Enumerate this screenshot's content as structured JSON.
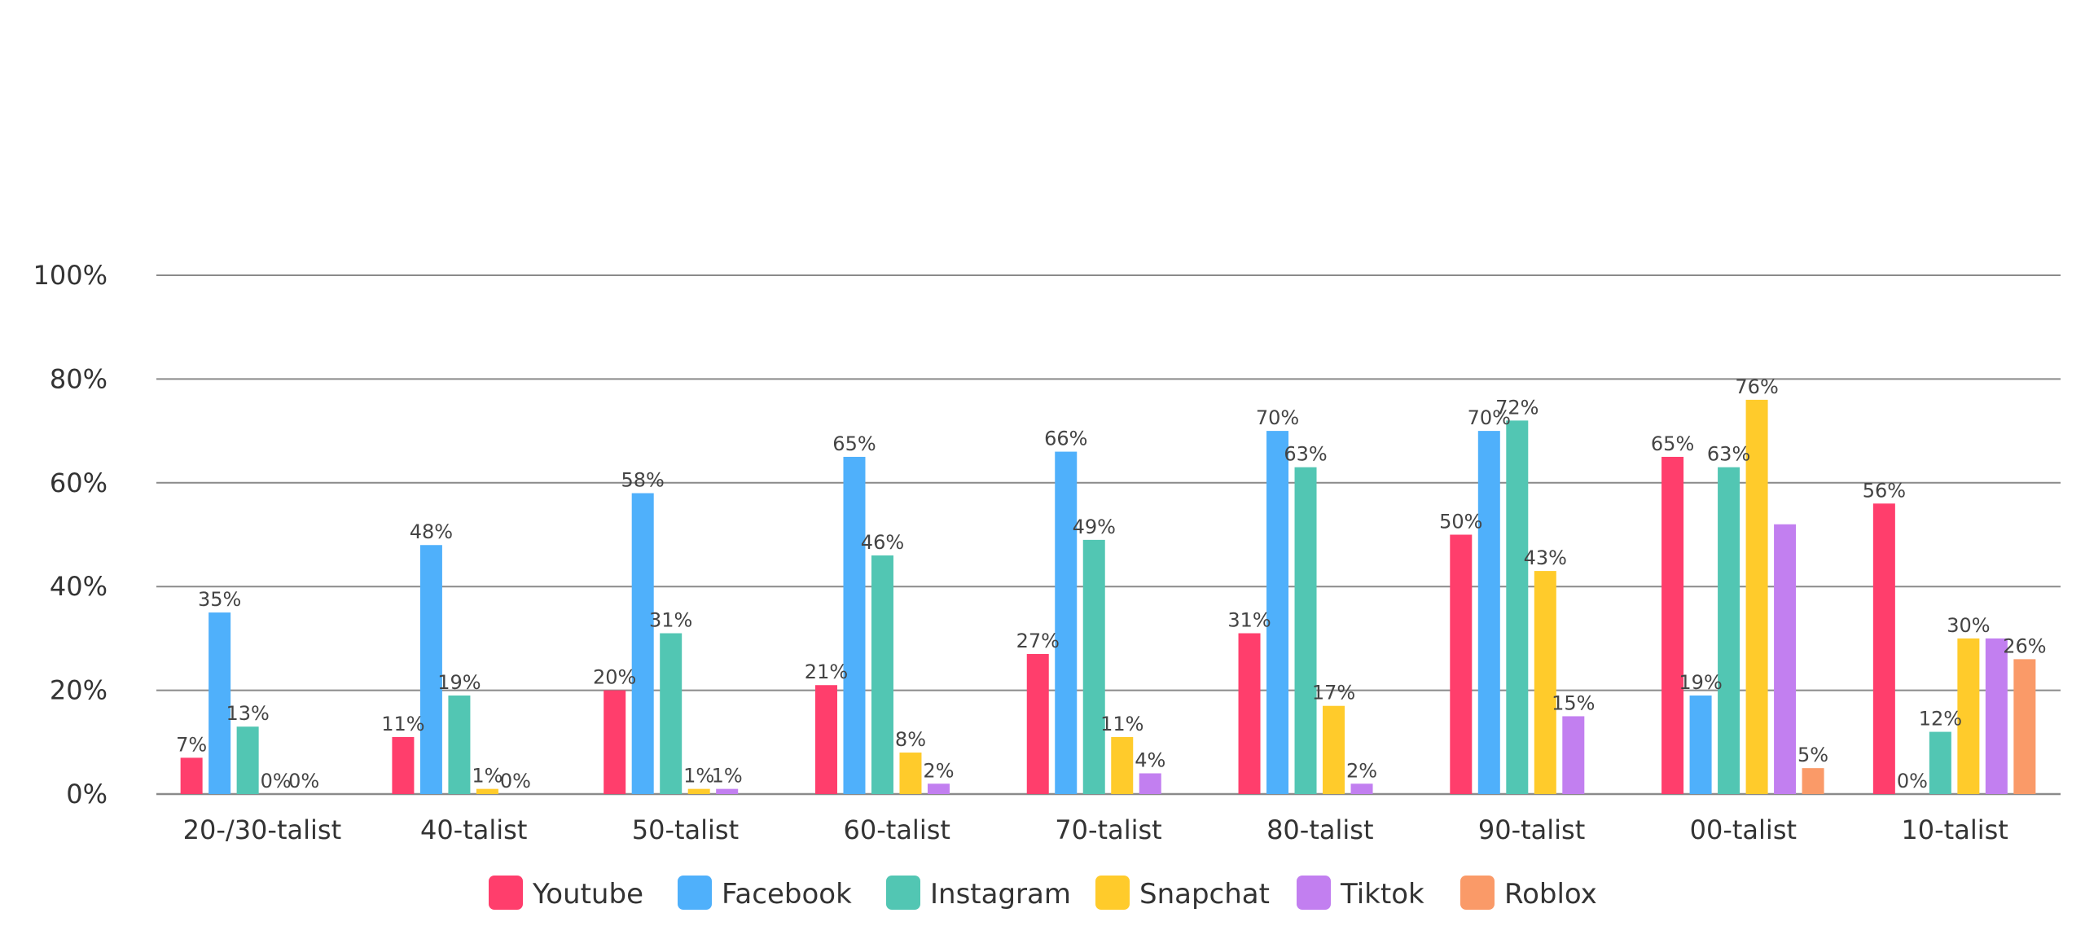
{
  "chart_data": {
    "type": "bar",
    "title": "",
    "xlabel": "",
    "ylabel": "",
    "ylim": [
      0,
      100
    ],
    "yticks": [
      "0%",
      "20%",
      "40%",
      "60%",
      "80%",
      "100%"
    ],
    "grid": true,
    "legend_position": "bottom",
    "categories": [
      "20-/30-talist",
      "40-talist",
      "50-talist",
      "60-talist",
      "70-talist",
      "80-talist",
      "90-talist",
      "00-talist",
      "10-talist"
    ],
    "series": [
      {
        "name": "Youtube",
        "color": "#ff3e6c",
        "values": [
          7,
          11,
          20,
          21,
          27,
          31,
          50,
          65,
          56
        ],
        "labels": [
          "7%",
          "11%",
          "20%",
          "21%",
          "27%",
          "31%",
          "50%",
          "65%",
          "56%"
        ]
      },
      {
        "name": "Facebook",
        "color": "#4fb0fb",
        "values": [
          35,
          48,
          58,
          65,
          66,
          70,
          70,
          19,
          0
        ],
        "labels": [
          "35%",
          "48%",
          "58%",
          "65%",
          "66%",
          "70%",
          "70%",
          "19%",
          "0%"
        ]
      },
      {
        "name": "Instagram",
        "color": "#52c6b3",
        "values": [
          13,
          19,
          31,
          46,
          49,
          63,
          72,
          63,
          12
        ],
        "labels": [
          "13%",
          "19%",
          "31%",
          "46%",
          "49%",
          "63%",
          "72%",
          "63%",
          "12%"
        ]
      },
      {
        "name": "Snapchat",
        "color": "#ffcb2b",
        "values": [
          0,
          1,
          1,
          8,
          11,
          17,
          43,
          76,
          30
        ],
        "labels": [
          "0%",
          "1%",
          "1%",
          "8%",
          "11%",
          "17%",
          "43%",
          "76%",
          "30%"
        ]
      },
      {
        "name": "Tiktok",
        "color": "#c27ff0",
        "values": [
          0,
          0,
          1,
          2,
          4,
          2,
          15,
          52,
          30
        ],
        "labels": [
          "0%",
          "0%",
          "1%",
          "2%",
          "4%",
          "2%",
          "15%",
          "52%",
          "30%"
        ]
      },
      {
        "name": "Roblox",
        "color": "#fa9a68",
        "values": [
          0,
          0,
          0,
          0,
          0,
          0,
          0,
          5,
          26
        ],
        "labels": [
          "0%",
          "0%",
          "0%",
          "0%",
          "0%",
          "0%",
          "0%",
          "5%",
          "26%"
        ]
      }
    ],
    "label_presence": [
      [
        true,
        true,
        true,
        true,
        true,
        true,
        true,
        true,
        true
      ],
      [
        true,
        true,
        true,
        true,
        true,
        true,
        true,
        true,
        true
      ],
      [
        true,
        true,
        true,
        true,
        true,
        true,
        true,
        true,
        true
      ],
      [
        true,
        true,
        true,
        true,
        true,
        true,
        true,
        true,
        true
      ],
      [
        true,
        true,
        true,
        true,
        true,
        true,
        true,
        true,
        true
      ],
      [
        true,
        true,
        true,
        true,
        true,
        true,
        true,
        true,
        true
      ]
    ],
    "hidden_labels": [
      [
        5,
        0
      ],
      [
        5,
        1
      ],
      [
        5,
        2
      ],
      [
        5,
        3
      ],
      [
        5,
        4
      ],
      [
        5,
        5
      ],
      [
        5,
        6
      ],
      [
        4,
        7
      ],
      [
        4,
        8
      ]
    ]
  }
}
